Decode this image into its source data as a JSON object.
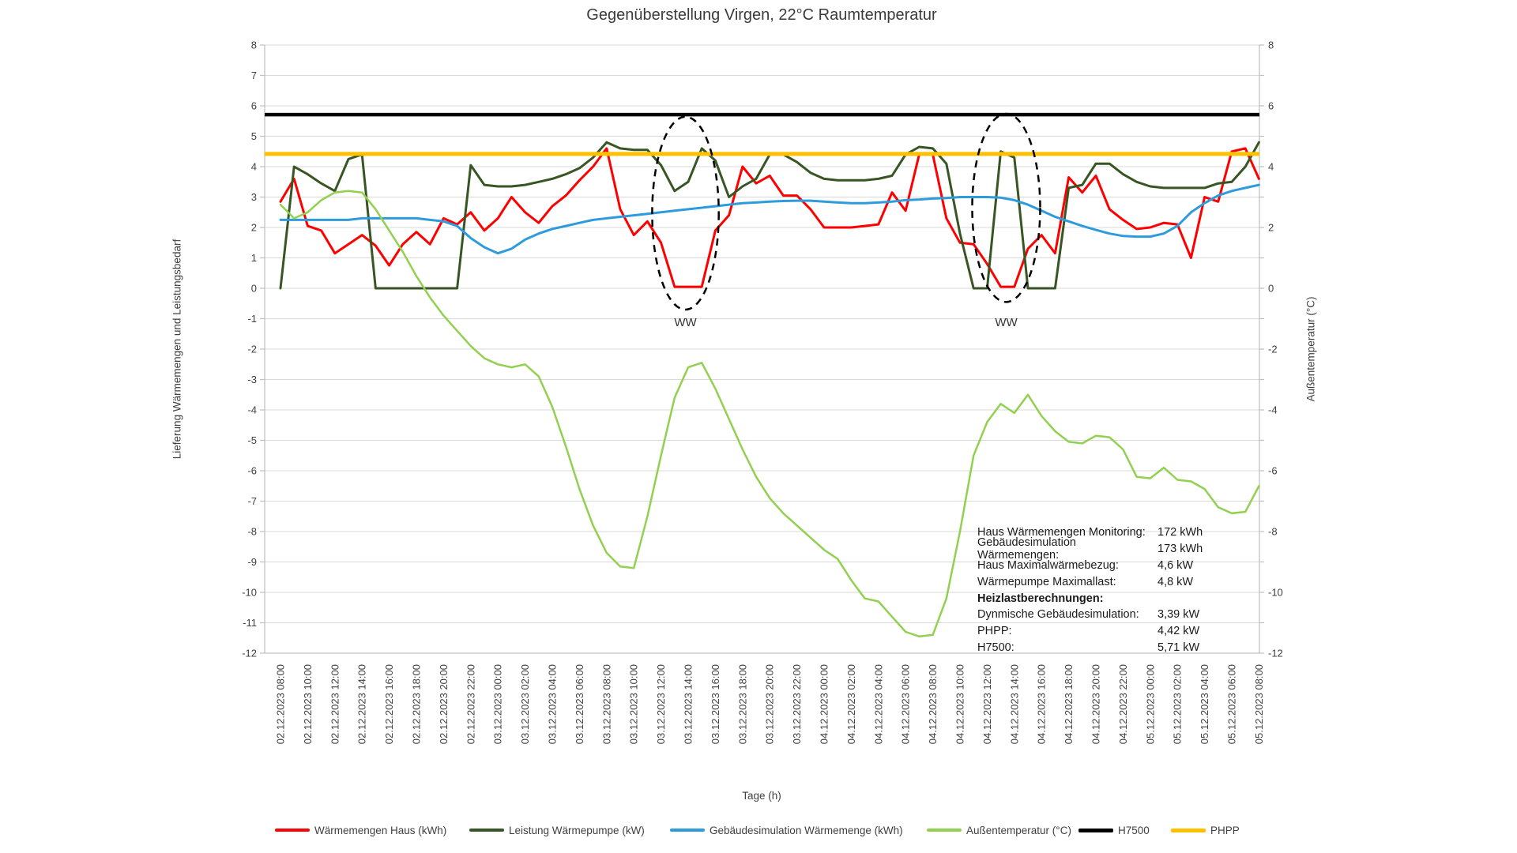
{
  "title": "Gegenüberstellung Virgen, 22°C Raumtemperatur",
  "chart_data": {
    "type": "line",
    "title": "Gegenüberstellung Virgen, 22°C Raumtemperatur",
    "x_axis": {
      "title": "Tage (h)",
      "hours_span": 72,
      "tick_interval_hours": 2,
      "tick_labels": [
        "02.12.2023 08:00",
        "02.12.2023 10:00",
        "02.12.2023 12:00",
        "02.12.2023 14:00",
        "02.12.2023 16:00",
        "02.12.2023 18:00",
        "02.12.2023 20:00",
        "02.12.2023 22:00",
        "03.12.2023 00:00",
        "03.12.2023 02:00",
        "03.12.2023 04:00",
        "03.12.2023 06:00",
        "03.12.2023 08:00",
        "03.12.2023 10:00",
        "03.12.2023 12:00",
        "03.12.2023 14:00",
        "03.12.2023 16:00",
        "03.12.2023 18:00",
        "03.12.2023 20:00",
        "03.12.2023 22:00",
        "04.12.2023 00:00",
        "04.12.2023 02:00",
        "04.12.2023 04:00",
        "04.12.2023 06:00",
        "04.12.2023 08:00",
        "04.12.2023 10:00",
        "04.12.2023 12:00",
        "04.12.2023 14:00",
        "04.12.2023 16:00",
        "04.12.2023 18:00",
        "04.12.2023 20:00",
        "04.12.2023 22:00",
        "05.12.2023 00:00",
        "05.12.2023 02:00",
        "05.12.2023 04:00",
        "05.12.2023 06:00",
        "05.12.2023 08:00"
      ]
    },
    "y_axis_left": {
      "title": "Lieferung Wärmemengen und Leistungsbedarf",
      "min": -12,
      "max": 8,
      "label_step": 1
    },
    "y_axis_right": {
      "title": "Außentemperatur (°C)",
      "min": -12,
      "max": 8,
      "label_step": 2
    },
    "grid": "horizontal",
    "legend_position": "bottom",
    "series": [
      {
        "name": "Wärmemengen Haus  (kWh)",
        "color": "#FF0000",
        "width": 3,
        "values": [
          2.85,
          3.6,
          2.05,
          1.9,
          1.15,
          1.45,
          1.75,
          1.4,
          0.75,
          1.45,
          1.85,
          1.45,
          2.3,
          2.1,
          2.5,
          1.9,
          2.3,
          3.0,
          2.5,
          2.15,
          2.7,
          3.05,
          3.55,
          4.0,
          4.6,
          2.6,
          1.75,
          2.2,
          1.5,
          0.05,
          0.05,
          0.05,
          1.9,
          2.4,
          4.0,
          3.45,
          3.7,
          3.05,
          3.05,
          2.6,
          2.0,
          2.0,
          2.0,
          2.05,
          2.1,
          3.15,
          2.55,
          4.4,
          4.4,
          2.3,
          1.5,
          1.45,
          0.8,
          0.05,
          0.05,
          1.3,
          1.75,
          1.15,
          3.65,
          3.15,
          3.7,
          2.6,
          2.25,
          1.95,
          2.0,
          2.15,
          2.1,
          1.0,
          3.0,
          2.85,
          4.5,
          4.6,
          3.6
        ]
      },
      {
        "name": "Leistung Wärmepumpe (kW)",
        "color": "#375623",
        "width": 3,
        "values": [
          0,
          4.0,
          3.75,
          3.45,
          3.2,
          4.25,
          4.4,
          0,
          0,
          0,
          0,
          0,
          0,
          0,
          4.05,
          3.4,
          3.35,
          3.35,
          3.4,
          3.5,
          3.6,
          3.75,
          3.95,
          4.3,
          4.8,
          4.6,
          4.55,
          4.55,
          4.05,
          3.2,
          3.5,
          4.6,
          4.2,
          3.0,
          3.35,
          3.6,
          4.4,
          4.4,
          4.15,
          3.8,
          3.6,
          3.55,
          3.55,
          3.55,
          3.6,
          3.7,
          4.4,
          4.65,
          4.6,
          4.1,
          1.8,
          0,
          0,
          4.5,
          4.3,
          0,
          0,
          0,
          3.3,
          3.4,
          4.1,
          4.1,
          3.75,
          3.5,
          3.35,
          3.3,
          3.3,
          3.3,
          3.3,
          3.45,
          3.5,
          4.0,
          4.8
        ]
      },
      {
        "name": "Gebäudesimulation Wärmemenge (kWh)",
        "color": "#2E9BDC",
        "width": 3,
        "values": [
          2.25,
          2.25,
          2.25,
          2.25,
          2.25,
          2.25,
          2.3,
          2.3,
          2.3,
          2.3,
          2.3,
          2.25,
          2.2,
          2.05,
          1.65,
          1.35,
          1.15,
          1.3,
          1.6,
          1.8,
          1.95,
          2.05,
          2.15,
          2.25,
          2.3,
          2.35,
          2.4,
          2.45,
          2.5,
          2.55,
          2.6,
          2.65,
          2.7,
          2.75,
          2.8,
          2.82,
          2.85,
          2.87,
          2.88,
          2.88,
          2.85,
          2.82,
          2.8,
          2.8,
          2.82,
          2.85,
          2.9,
          2.92,
          2.95,
          2.97,
          3.0,
          3.0,
          3.0,
          2.98,
          2.9,
          2.75,
          2.55,
          2.35,
          2.2,
          2.05,
          1.92,
          1.8,
          1.72,
          1.7,
          1.7,
          1.8,
          2.05,
          2.5,
          2.8,
          3.05,
          3.2,
          3.3,
          3.4
        ]
      },
      {
        "name": "Außentemperatur (°C)",
        "color": "#92D050",
        "width": 2.5,
        "axis": "right",
        "values": [
          2.75,
          2.3,
          2.5,
          2.9,
          3.15,
          3.2,
          3.15,
          2.6,
          1.9,
          1.2,
          0.4,
          -0.3,
          -0.9,
          -1.4,
          -1.9,
          -2.3,
          -2.5,
          -2.6,
          -2.5,
          -2.9,
          -3.9,
          -5.2,
          -6.6,
          -7.8,
          -8.7,
          -9.15,
          -9.2,
          -7.5,
          -5.5,
          -3.6,
          -2.6,
          -2.45,
          -3.3,
          -4.3,
          -5.3,
          -6.2,
          -6.9,
          -7.4,
          -7.8,
          -8.2,
          -8.6,
          -8.9,
          -9.6,
          -10.2,
          -10.3,
          -10.8,
          -11.3,
          -11.45,
          -11.4,
          -10.2,
          -8.0,
          -5.5,
          -4.4,
          -3.8,
          -4.1,
          -3.5,
          -4.2,
          -4.7,
          -5.05,
          -5.1,
          -4.85,
          -4.9,
          -5.3,
          -6.2,
          -6.25,
          -5.9,
          -6.3,
          -6.35,
          -6.6,
          -7.2,
          -7.4,
          -7.35,
          -6.5
        ]
      },
      {
        "name": "H7500",
        "color": "#000000",
        "width": 4.5,
        "constant": 5.71
      },
      {
        "name": "PHPP",
        "color": "#FFC000",
        "width": 5,
        "constant": 4.42
      }
    ],
    "annotations": [
      {
        "label": "WW",
        "hour_center": 29.8,
        "hour_half_width": 2.45,
        "value_top": 5.64,
        "value_bottom": -0.7,
        "label_value": -1.25
      },
      {
        "label": "WW",
        "hour_center": 53.4,
        "hour_half_width": 2.5,
        "value_top": 5.74,
        "value_bottom": -0.45,
        "label_value": -1.25
      }
    ]
  },
  "stats_box": {
    "rows": [
      {
        "label": "Haus Wärmemengen Monitoring:",
        "value": "172 kWh",
        "bold": false
      },
      {
        "label": "Gebäudesimulation Wärmemengen:",
        "value": "173 kWh",
        "bold": false
      },
      {
        "label": "Haus Maximalwärmebezug:",
        "value": "4,6 kW",
        "bold": false
      },
      {
        "label": "Wärmepumpe Maximallast:",
        "value": "4,8 kW",
        "bold": false
      },
      {
        "label": "Heizlastberechnungen:",
        "value": "",
        "bold": true
      },
      {
        "label": "Dynmische Gebäudesimulation:",
        "value": "3,39 kW",
        "bold": false
      },
      {
        "label": "PHPP:",
        "value": "4,42 kW",
        "bold": false
      },
      {
        "label": "H7500:",
        "value": "5,71 kW",
        "bold": false
      }
    ]
  },
  "colors": {
    "grid": "#D9D9D9",
    "axis": "#BFBFBF",
    "tick_text": "#404040",
    "annotation": "#000000"
  }
}
